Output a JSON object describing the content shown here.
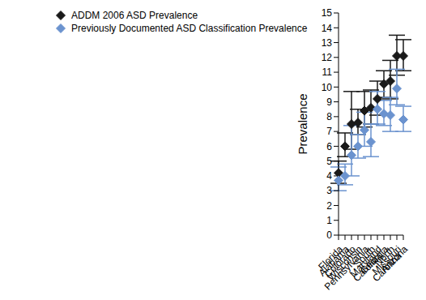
{
  "chart_data": {
    "type": "scatter",
    "y_label": "Prevalence",
    "categories": [
      "Florida",
      "Alabama",
      "Colorado",
      "Wisconsin",
      "Pennsylvania",
      "South Carolina",
      "Maryland",
      "Georgia",
      "North Carolina",
      "Missouri",
      "Arizona"
    ],
    "ylim": [
      0,
      15
    ],
    "yticks": [
      0,
      1,
      2,
      3,
      4,
      5,
      6,
      7,
      8,
      9,
      10,
      11,
      12,
      13,
      14,
      15
    ],
    "grid": false,
    "legend": "upper left",
    "series": [
      {
        "name": "ADDM 2006 ASD Prevalence",
        "color": "#1a1a1a",
        "marker": "diamond",
        "values": [
          4.2,
          6.0,
          7.5,
          7.6,
          8.4,
          8.6,
          9.2,
          10.2,
          10.4,
          12.1,
          12.1
        ],
        "lower": [
          3.5,
          5.3,
          5.8,
          6.8,
          7.3,
          7.5,
          8.1,
          9.3,
          9.2,
          10.8,
          11.1
        ],
        "upper": [
          5.0,
          6.9,
          9.7,
          8.5,
          9.7,
          9.8,
          10.4,
          11.1,
          11.8,
          13.5,
          13.2
        ]
      },
      {
        "name": "Previously Documented ASD Classification Prevalence",
        "color": "#6b93cf",
        "marker": "diamond",
        "values": [
          3.7,
          4.0,
          5.4,
          6.0,
          7.1,
          6.3,
          8.5,
          8.2,
          8.1,
          9.9,
          7.8
        ],
        "lower": [
          3.0,
          3.4,
          4.0,
          5.2,
          6.0,
          5.3,
          7.5,
          7.4,
          7.0,
          8.8,
          7.0
        ],
        "upper": [
          4.6,
          4.8,
          7.4,
          6.8,
          8.3,
          7.5,
          9.7,
          9.1,
          9.3,
          11.2,
          8.7
        ]
      }
    ]
  }
}
